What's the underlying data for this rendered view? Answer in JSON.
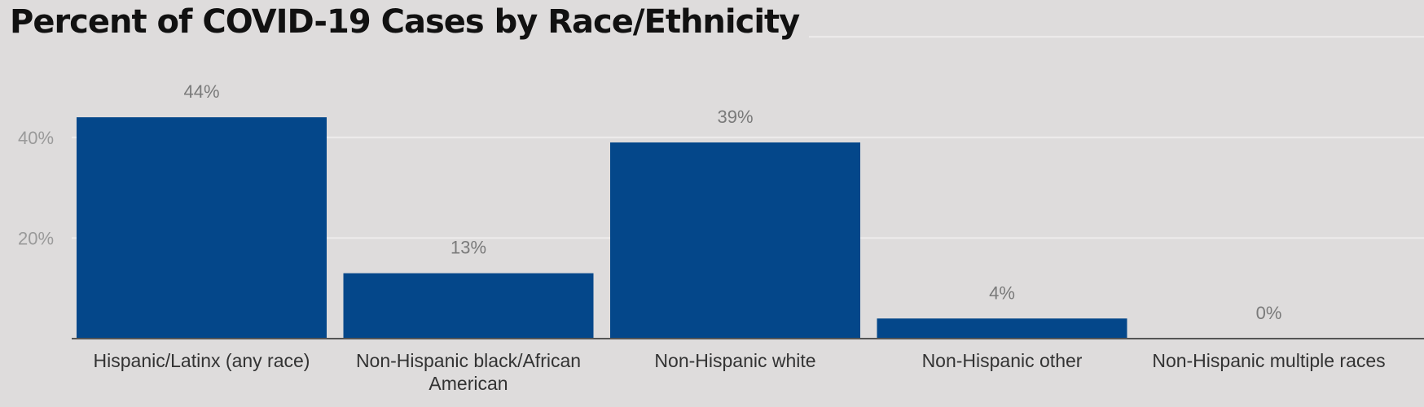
{
  "chart_data": {
    "type": "bar",
    "title": "Percent of COVID-19 Cases by Race/Ethnicity",
    "xlabel": "",
    "ylabel": "",
    "categories": [
      "Hispanic/Latinx (any race)",
      "Non-Hispanic black/African American",
      "Non-Hispanic white",
      "Non-Hispanic other",
      "Non-Hispanic multiple races"
    ],
    "category_lines": [
      [
        "Hispanic/Latinx (any race)"
      ],
      [
        "Non-Hispanic black/African",
        "American"
      ],
      [
        "Non-Hispanic white"
      ],
      [
        "Non-Hispanic other"
      ],
      [
        "Non-Hispanic multiple races"
      ]
    ],
    "values": [
      44,
      13,
      39,
      4,
      0
    ],
    "value_labels": [
      "44%",
      "13%",
      "39%",
      "4%",
      "0%"
    ],
    "y_ticks": [
      20,
      40
    ],
    "y_tick_labels": [
      "20%",
      "40%"
    ],
    "ylim": [
      0,
      60
    ],
    "grid": true,
    "legend": "none",
    "colors": {
      "bar": "#04478a",
      "background": "#dedcdc",
      "grid": "#eeecec",
      "axis": "#555555"
    }
  }
}
